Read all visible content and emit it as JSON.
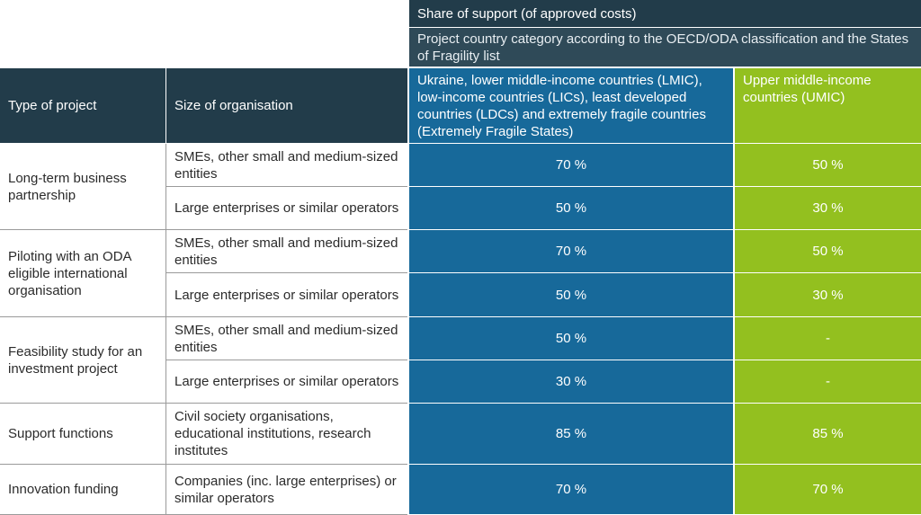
{
  "header": {
    "share": "Share of support (of approved costs)",
    "category": "Project country category according to the OECD/ODA classification and the States of Fragility list"
  },
  "columns": [
    "Type of project",
    "Size of organisation",
    "Ukraine, lower middle-income countries (LMIC), low-income countries (LICs), least developed countries (LDCs) and extremely fragile countries (Extremely Fragile States)",
    "Upper middle-income countries (UMIC)"
  ],
  "groups": [
    {
      "type": "Long-term business partnership",
      "rows": [
        {
          "size": "SMEs, other small and medium-sized entities",
          "lmic": "70 %",
          "umic": "50 %"
        },
        {
          "size": "Large enterprises or similar operators",
          "lmic": "50 %",
          "umic": "30 %"
        }
      ]
    },
    {
      "type": "Piloting with an ODA eligible international organisation",
      "rows": [
        {
          "size": "SMEs, other small and medium-sized entities",
          "lmic": "70 %",
          "umic": "50 %"
        },
        {
          "size": "Large enterprises or similar operators",
          "lmic": "50 %",
          "umic": "30 %"
        }
      ]
    },
    {
      "type": "Feasibility study for an investment project",
      "rows": [
        {
          "size": "SMEs, other small and medium-sized entities",
          "lmic": "50 %",
          "umic": "-"
        },
        {
          "size": "Large enterprises or similar operators",
          "lmic": "30 %",
          "umic": "-"
        }
      ]
    },
    {
      "type": "Support functions",
      "rows": [
        {
          "size": "Civil society organisations, educational institutions, research institutes",
          "lmic": "85 %",
          "umic": "85 %"
        }
      ]
    },
    {
      "type": "Innovation funding",
      "rows": [
        {
          "size": "Companies (inc. large enterprises) or similar operators",
          "lmic": "70 %",
          "umic": "70 %"
        }
      ]
    }
  ]
}
